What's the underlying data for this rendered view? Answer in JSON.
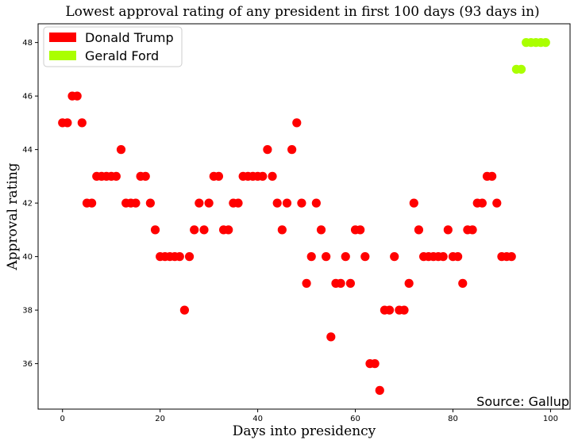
{
  "chart_data": {
    "type": "scatter",
    "title": "Lowest approval rating of any president in first 100 days (93 days in)",
    "xlabel": "Days into presidency",
    "ylabel": "Approval rating",
    "xlim": [
      -5,
      104
    ],
    "ylim": [
      34.3,
      48.7
    ],
    "xticks": [
      0,
      20,
      40,
      60,
      80,
      100
    ],
    "yticks": [
      36,
      38,
      40,
      42,
      44,
      46,
      48
    ],
    "grid": false,
    "legend_position": "top-left",
    "source": "Source: Gallup",
    "series": [
      {
        "name": "Donald Trump",
        "color": "#ff0000",
        "points": [
          [
            0,
            45
          ],
          [
            1,
            45
          ],
          [
            2,
            46
          ],
          [
            3,
            46
          ],
          [
            4,
            45
          ],
          [
            5,
            42
          ],
          [
            6,
            42
          ],
          [
            7,
            43
          ],
          [
            8,
            43
          ],
          [
            9,
            43
          ],
          [
            10,
            43
          ],
          [
            11,
            43
          ],
          [
            12,
            44
          ],
          [
            13,
            42
          ],
          [
            14,
            42
          ],
          [
            15,
            42
          ],
          [
            16,
            43
          ],
          [
            17,
            43
          ],
          [
            18,
            42
          ],
          [
            19,
            41
          ],
          [
            20,
            40
          ],
          [
            21,
            40
          ],
          [
            22,
            40
          ],
          [
            23,
            40
          ],
          [
            24,
            40
          ],
          [
            25,
            38
          ],
          [
            26,
            40
          ],
          [
            27,
            41
          ],
          [
            28,
            42
          ],
          [
            29,
            41
          ],
          [
            30,
            42
          ],
          [
            31,
            43
          ],
          [
            32,
            43
          ],
          [
            33,
            41
          ],
          [
            34,
            41
          ],
          [
            35,
            42
          ],
          [
            36,
            42
          ],
          [
            37,
            43
          ],
          [
            38,
            43
          ],
          [
            39,
            43
          ],
          [
            40,
            43
          ],
          [
            41,
            43
          ],
          [
            42,
            44
          ],
          [
            43,
            43
          ],
          [
            44,
            42
          ],
          [
            45,
            41
          ],
          [
            46,
            42
          ],
          [
            47,
            44
          ],
          [
            48,
            45
          ],
          [
            49,
            42
          ],
          [
            50,
            39
          ],
          [
            51,
            40
          ],
          [
            52,
            42
          ],
          [
            53,
            41
          ],
          [
            54,
            40
          ],
          [
            55,
            37
          ],
          [
            56,
            39
          ],
          [
            57,
            39
          ],
          [
            58,
            40
          ],
          [
            59,
            39
          ],
          [
            60,
            41
          ],
          [
            61,
            41
          ],
          [
            62,
            40
          ],
          [
            63,
            36
          ],
          [
            64,
            36
          ],
          [
            65,
            35
          ],
          [
            66,
            38
          ],
          [
            67,
            38
          ],
          [
            68,
            40
          ],
          [
            69,
            38
          ],
          [
            70,
            38
          ],
          [
            71,
            39
          ],
          [
            72,
            42
          ],
          [
            73,
            41
          ],
          [
            74,
            40
          ],
          [
            75,
            40
          ],
          [
            76,
            40
          ],
          [
            77,
            40
          ],
          [
            78,
            40
          ],
          [
            79,
            41
          ],
          [
            80,
            40
          ],
          [
            81,
            40
          ],
          [
            82,
            39
          ],
          [
            83,
            41
          ],
          [
            84,
            41
          ],
          [
            85,
            42
          ],
          [
            86,
            42
          ],
          [
            87,
            43
          ],
          [
            88,
            43
          ],
          [
            89,
            42
          ],
          [
            90,
            40
          ],
          [
            91,
            40
          ],
          [
            92,
            40
          ]
        ]
      },
      {
        "name": "Gerald Ford",
        "color": "#aaff00",
        "points": [
          [
            93,
            47
          ],
          [
            94,
            47
          ],
          [
            95,
            48
          ],
          [
            96,
            48
          ],
          [
            97,
            48
          ],
          [
            98,
            48
          ],
          [
            99,
            48
          ]
        ]
      }
    ]
  }
}
